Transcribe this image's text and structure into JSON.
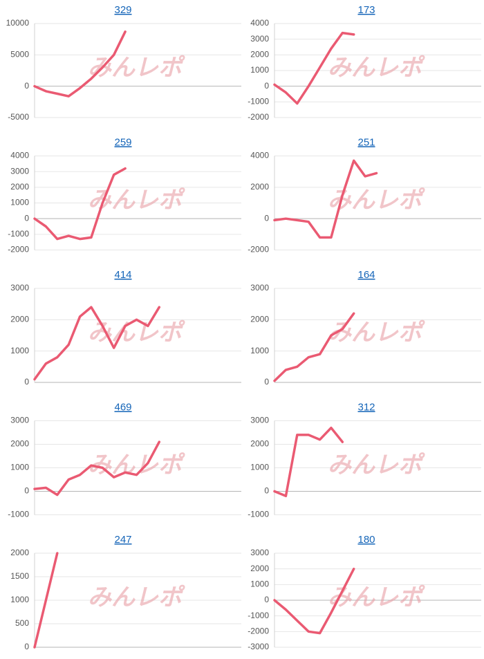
{
  "watermark": "みんレポ",
  "chart_data": [
    {
      "type": "line",
      "title": "329",
      "categories": [
        null,
        null,
        null,
        null,
        null,
        null,
        null,
        null,
        null,
        null,
        null,
        null,
        null,
        null,
        null,
        null,
        null,
        null,
        null
      ],
      "series": [
        {
          "color": "#ea5a72",
          "values": [
            0,
            -800,
            -1200,
            -1600,
            -300,
            1200,
            3000,
            5000,
            8700,
            null,
            null,
            null,
            null,
            null,
            null,
            null,
            null,
            null,
            null
          ]
        }
      ],
      "ylim": [
        -5000,
        10000
      ],
      "yticks": [
        -5000,
        0,
        5000,
        10000
      ],
      "grid": true
    },
    {
      "type": "line",
      "title": "173",
      "categories": [
        null,
        null,
        null,
        null,
        null,
        null,
        null,
        null,
        null,
        null,
        null,
        null,
        null,
        null,
        null,
        null,
        null,
        null,
        null
      ],
      "series": [
        {
          "color": "#ea5a72",
          "values": [
            100,
            -400,
            -1100,
            0,
            1200,
            2400,
            3400,
            3300,
            null,
            null,
            null,
            null,
            null,
            null,
            null,
            null,
            null,
            null,
            null
          ]
        }
      ],
      "ylim": [
        -2000,
        4000
      ],
      "yticks": [
        -2000,
        -1000,
        0,
        1000,
        2000,
        3000,
        4000
      ],
      "grid": true
    },
    {
      "type": "line",
      "title": "259",
      "categories": [
        null,
        null,
        null,
        null,
        null,
        null,
        null,
        null,
        null,
        null,
        null,
        null,
        null,
        null,
        null,
        null,
        null,
        null,
        null
      ],
      "series": [
        {
          "color": "#ea5a72",
          "values": [
            0,
            -500,
            -1300,
            -1100,
            -1300,
            -1200,
            1000,
            2800,
            3200,
            null,
            null,
            null,
            null,
            null,
            null,
            null,
            null,
            null,
            null
          ]
        }
      ],
      "ylim": [
        -2000,
        4000
      ],
      "yticks": [
        -2000,
        -1000,
        0,
        1000,
        2000,
        3000,
        4000
      ],
      "grid": true
    },
    {
      "type": "line",
      "title": "251",
      "categories": [
        null,
        null,
        null,
        null,
        null,
        null,
        null,
        null,
        null,
        null,
        null,
        null,
        null,
        null,
        null,
        null,
        null,
        null,
        null
      ],
      "series": [
        {
          "color": "#ea5a72",
          "values": [
            -100,
            0,
            -100,
            -200,
            -1200,
            -1200,
            1500,
            3700,
            2700,
            2900,
            null,
            null,
            null,
            null,
            null,
            null,
            null,
            null,
            null
          ]
        }
      ],
      "ylim": [
        -2000,
        4000
      ],
      "yticks": [
        -2000,
        0,
        2000,
        4000
      ],
      "grid": true
    },
    {
      "type": "line",
      "title": "414",
      "categories": [
        null,
        null,
        null,
        null,
        null,
        null,
        null,
        null,
        null,
        null,
        null,
        null,
        null,
        null,
        null,
        null,
        null,
        null,
        null
      ],
      "series": [
        {
          "color": "#ea5a72",
          "values": [
            100,
            600,
            800,
            1200,
            2100,
            2400,
            1800,
            1100,
            1800,
            2000,
            1800,
            2400,
            null,
            null,
            null,
            null,
            null,
            null,
            null
          ]
        }
      ],
      "ylim": [
        0,
        3000
      ],
      "yticks": [
        0,
        1000,
        2000,
        3000
      ],
      "grid": true
    },
    {
      "type": "line",
      "title": "164",
      "categories": [
        null,
        null,
        null,
        null,
        null,
        null,
        null,
        null,
        null,
        null,
        null,
        null,
        null,
        null,
        null,
        null,
        null,
        null,
        null
      ],
      "series": [
        {
          "color": "#ea5a72",
          "values": [
            50,
            400,
            500,
            800,
            900,
            1500,
            1700,
            2200,
            null,
            null,
            null,
            null,
            null,
            null,
            null,
            null,
            null,
            null,
            null
          ]
        }
      ],
      "ylim": [
        0,
        3000
      ],
      "yticks": [
        0,
        1000,
        2000,
        3000
      ],
      "grid": true
    },
    {
      "type": "line",
      "title": "469",
      "categories": [
        null,
        null,
        null,
        null,
        null,
        null,
        null,
        null,
        null,
        null,
        null,
        null,
        null,
        null,
        null,
        null,
        null,
        null,
        null
      ],
      "series": [
        {
          "color": "#ea5a72",
          "values": [
            100,
            150,
            -150,
            500,
            700,
            1100,
            1000,
            600,
            800,
            700,
            1200,
            2100,
            null,
            null,
            null,
            null,
            null,
            null,
            null
          ]
        }
      ],
      "ylim": [
        -1000,
        3000
      ],
      "yticks": [
        -1000,
        0,
        1000,
        2000,
        3000
      ],
      "grid": true
    },
    {
      "type": "line",
      "title": "312",
      "categories": [
        null,
        null,
        null,
        null,
        null,
        null,
        null,
        null,
        null,
        null,
        null,
        null,
        null,
        null,
        null,
        null,
        null,
        null,
        null
      ],
      "series": [
        {
          "color": "#ea5a72",
          "values": [
            0,
            -200,
            2400,
            2400,
            2200,
            2700,
            2100,
            null,
            null,
            null,
            null,
            null,
            null,
            null,
            null,
            null,
            null,
            null,
            null
          ]
        }
      ],
      "ylim": [
        -1000,
        3000
      ],
      "yticks": [
        -1000,
        0,
        1000,
        2000,
        3000
      ],
      "grid": true
    },
    {
      "type": "line",
      "title": "247",
      "categories": [
        null,
        null,
        null,
        null,
        null,
        null,
        null,
        null,
        null,
        null,
        null,
        null,
        null,
        null,
        null,
        null,
        null,
        null,
        null
      ],
      "series": [
        {
          "color": "#ea5a72",
          "values": [
            0,
            1000,
            2000,
            null,
            null,
            null,
            null,
            null,
            null,
            null,
            null,
            null,
            null,
            null,
            null,
            null,
            null,
            null,
            null
          ]
        }
      ],
      "ylim": [
        0,
        2000
      ],
      "yticks": [
        0,
        500,
        1000,
        1500,
        2000
      ],
      "grid": true
    },
    {
      "type": "line",
      "title": "180",
      "categories": [
        null,
        null,
        null,
        null,
        null,
        null,
        null,
        null,
        null,
        null,
        null,
        null,
        null,
        null,
        null,
        null,
        null,
        null,
        null
      ],
      "series": [
        {
          "color": "#ea5a72",
          "values": [
            0,
            -600,
            -1300,
            -2000,
            -2100,
            -800,
            600,
            2000,
            null,
            null,
            null,
            null,
            null,
            null,
            null,
            null,
            null,
            null,
            null
          ]
        }
      ],
      "ylim": [
        -3000,
        3000
      ],
      "yticks": [
        -3000,
        -2000,
        -1000,
        0,
        1000,
        2000,
        3000
      ],
      "grid": true
    }
  ]
}
